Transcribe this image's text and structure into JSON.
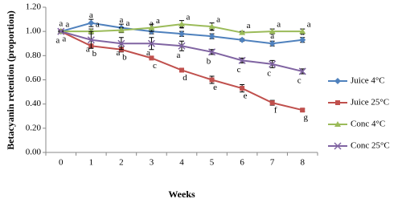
{
  "chart_data": {
    "type": "line",
    "x_label": "Weeks",
    "y_label": "Betacyanin retention (proportion)",
    "categories": [
      "0",
      "1",
      "2",
      "3",
      "4",
      "5",
      "6",
      "7",
      "8"
    ],
    "ylim": [
      0,
      1.2
    ],
    "yticks": [
      {
        "value": 0,
        "label": "0.00"
      },
      {
        "value": 0.2,
        "label": "0.20"
      },
      {
        "value": 0.4,
        "label": "0.40"
      },
      {
        "value": 0.6,
        "label": "0.60"
      },
      {
        "value": 0.8,
        "label": "0.80"
      },
      {
        "value": 1,
        "label": "1.00"
      },
      {
        "value": 1.2,
        "label": "1.20"
      }
    ],
    "legend": "right",
    "series": [
      {
        "name": "Juice 4°C",
        "color": "#4f81bd",
        "marker": "diamond",
        "values": [
          1.0,
          1.07,
          1.03,
          1.0,
          0.98,
          0.96,
          0.93,
          0.9,
          0.93
        ],
        "errors": [
          0.005,
          0.03,
          0.03,
          0.02,
          0.02,
          0.02,
          0.01,
          0.02,
          0.02
        ],
        "letters": [
          "a",
          "a",
          "a",
          "a",
          "a",
          "a",
          "a",
          "a",
          "a"
        ]
      },
      {
        "name": "Juice 25°C",
        "color": "#c0504d",
        "marker": "square",
        "values": [
          1.0,
          0.88,
          0.85,
          0.78,
          0.68,
          0.6,
          0.53,
          0.41,
          0.35
        ],
        "errors": [
          0.005,
          0.01,
          0.02,
          0.01,
          0.01,
          0.03,
          0.03,
          0.02,
          0.01
        ],
        "letters": [
          "a",
          "b",
          "b",
          "c",
          "d",
          "e",
          "e",
          "f",
          "g"
        ]
      },
      {
        "name": "Conc 4°C",
        "color": "#9bbb59",
        "marker": "triangle",
        "values": [
          1.0,
          1.0,
          1.01,
          1.03,
          1.06,
          1.04,
          0.99,
          1.0,
          1.0
        ],
        "errors": [
          0.005,
          0.02,
          0.02,
          0.03,
          0.03,
          0.03,
          0.01,
          0.02,
          0.02
        ],
        "letters": [
          "a",
          "a",
          "a",
          "a",
          "a",
          "a",
          "a",
          "a",
          "a"
        ]
      },
      {
        "name": "Conc 25°C",
        "color": "#8064a2",
        "marker": "x",
        "values": [
          1.0,
          0.93,
          0.9,
          0.9,
          0.88,
          0.83,
          0.76,
          0.73,
          0.67
        ],
        "errors": [
          0.005,
          0.07,
          0.05,
          0.05,
          0.04,
          0.02,
          0.02,
          0.03,
          0.02
        ],
        "letters": [
          "a",
          "a",
          "a",
          "a",
          "a",
          "b",
          "c",
          "c",
          "c"
        ]
      }
    ]
  }
}
